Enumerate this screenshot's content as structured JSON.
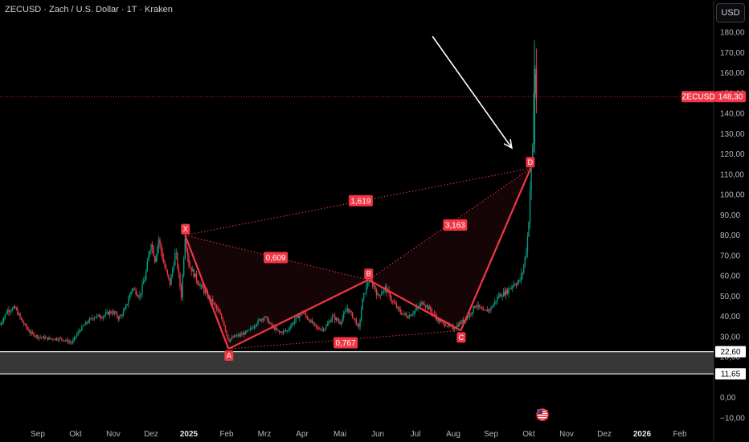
{
  "header": {
    "title": "ZECUSD · Zach / U.S. Dollar · 1T · Kraken",
    "currency_button": "USD"
  },
  "chart_data": {
    "type": "candlestick",
    "symbol": "ZECUSD",
    "last_price": "148,30",
    "y_ticks": [
      "180,00",
      "170,00",
      "160,00",
      "150,00",
      "140,00",
      "130,00",
      "120,00",
      "110,00",
      "100,00",
      "90,00",
      "80,00",
      "70,00",
      "60,00",
      "50,00",
      "40,00",
      "30,00",
      "20,00",
      "0,00",
      "−10,00"
    ],
    "y_tick_values": [
      180,
      170,
      160,
      150,
      140,
      130,
      120,
      110,
      100,
      90,
      80,
      70,
      60,
      50,
      40,
      30,
      20,
      0,
      -10
    ],
    "ylim": [
      -14,
      188
    ],
    "x_ticks": [
      {
        "label": "Sep",
        "x": 1,
        "bold": false
      },
      {
        "label": "Okt",
        "x": 2,
        "bold": false
      },
      {
        "label": "Nov",
        "x": 3,
        "bold": false
      },
      {
        "label": "Dez",
        "x": 4,
        "bold": false
      },
      {
        "label": "2025",
        "x": 5,
        "bold": true
      },
      {
        "label": "Feb",
        "x": 6,
        "bold": false
      },
      {
        "label": "Mrz",
        "x": 7,
        "bold": false
      },
      {
        "label": "Apr",
        "x": 8,
        "bold": false
      },
      {
        "label": "Mai",
        "x": 9,
        "bold": false
      },
      {
        "label": "Jun",
        "x": 10,
        "bold": false
      },
      {
        "label": "Jul",
        "x": 11,
        "bold": false
      },
      {
        "label": "Aug",
        "x": 12,
        "bold": false
      },
      {
        "label": "Sep",
        "x": 13,
        "bold": false
      },
      {
        "label": "Okt",
        "x": 14,
        "bold": false
      },
      {
        "label": "Nov",
        "x": 15,
        "bold": false
      },
      {
        "label": "Dez",
        "x": 16,
        "bold": false
      },
      {
        "label": "2026",
        "x": 17,
        "bold": true
      },
      {
        "label": "Feb",
        "x": 18,
        "bold": false
      }
    ],
    "price_path": [
      [
        0.0,
        36
      ],
      [
        0.2,
        43
      ],
      [
        0.4,
        44
      ],
      [
        0.6,
        37
      ],
      [
        0.8,
        32
      ],
      [
        1.0,
        30
      ],
      [
        1.3,
        29
      ],
      [
        1.6,
        29
      ],
      [
        1.9,
        27
      ],
      [
        2.1,
        33
      ],
      [
        2.3,
        37
      ],
      [
        2.5,
        40
      ],
      [
        2.7,
        40
      ],
      [
        2.9,
        42
      ],
      [
        3.0,
        42
      ],
      [
        3.15,
        39
      ],
      [
        3.3,
        43
      ],
      [
        3.5,
        54
      ],
      [
        3.7,
        50
      ],
      [
        3.85,
        60
      ],
      [
        4.0,
        77
      ],
      [
        4.1,
        68
      ],
      [
        4.2,
        78
      ],
      [
        4.35,
        65
      ],
      [
        4.5,
        56
      ],
      [
        4.65,
        72
      ],
      [
        4.8,
        50
      ],
      [
        4.9,
        80
      ],
      [
        5.0,
        66
      ],
      [
        5.1,
        62
      ],
      [
        5.3,
        55
      ],
      [
        5.5,
        50
      ],
      [
        5.7,
        45
      ],
      [
        5.9,
        38
      ],
      [
        6.05,
        28
      ],
      [
        6.2,
        30
      ],
      [
        6.4,
        31
      ],
      [
        6.6,
        33
      ],
      [
        6.8,
        37
      ],
      [
        7.0,
        40
      ],
      [
        7.2,
        35
      ],
      [
        7.4,
        32
      ],
      [
        7.6,
        33
      ],
      [
        7.8,
        38
      ],
      [
        8.0,
        42
      ],
      [
        8.2,
        38
      ],
      [
        8.4,
        34
      ],
      [
        8.6,
        34
      ],
      [
        8.8,
        40
      ],
      [
        9.0,
        37
      ],
      [
        9.2,
        44
      ],
      [
        9.4,
        38
      ],
      [
        9.5,
        34
      ],
      [
        9.6,
        48
      ],
      [
        9.75,
        58
      ],
      [
        9.9,
        55
      ],
      [
        10.0,
        50
      ],
      [
        10.2,
        54
      ],
      [
        10.4,
        47
      ],
      [
        10.6,
        42
      ],
      [
        10.8,
        40
      ],
      [
        11.0,
        43
      ],
      [
        11.2,
        47
      ],
      [
        11.4,
        43
      ],
      [
        11.6,
        38
      ],
      [
        11.8,
        36
      ],
      [
        12.0,
        34
      ],
      [
        12.2,
        37
      ],
      [
        12.4,
        40
      ],
      [
        12.6,
        46
      ],
      [
        12.8,
        42
      ],
      [
        13.0,
        44
      ],
      [
        13.2,
        50
      ],
      [
        13.4,
        52
      ],
      [
        13.6,
        56
      ],
      [
        13.75,
        57
      ],
      [
        13.85,
        63
      ],
      [
        13.95,
        75
      ],
      [
        14.0,
        88
      ],
      [
        14.05,
        110
      ],
      [
        14.1,
        122
      ],
      [
        14.15,
        165
      ],
      [
        14.2,
        148
      ]
    ],
    "levels": [
      {
        "value": 22.6,
        "label": "22,60"
      },
      {
        "value": 11.65,
        "label": "11,65"
      }
    ],
    "current_price_level": 148.3,
    "pattern": {
      "points": [
        {
          "name": "X",
          "x": 4.9,
          "y": 80
        },
        {
          "name": "A",
          "x": 6.05,
          "y": 24
        },
        {
          "name": "B",
          "x": 9.75,
          "y": 58
        },
        {
          "name": "C",
          "x": 12.2,
          "y": 33
        },
        {
          "name": "D",
          "x": 14.05,
          "y": 113
        }
      ],
      "ratios": [
        {
          "label": "1,619",
          "x": 9.55,
          "y": 97
        },
        {
          "label": "0,609",
          "x": 7.3,
          "y": 69
        },
        {
          "label": "0,767",
          "x": 9.15,
          "y": 27
        },
        {
          "label": "3,163",
          "x": 12.05,
          "y": 85
        }
      ]
    },
    "arrow": {
      "from": [
        11.45,
        178
      ],
      "to": [
        13.55,
        123
      ]
    }
  }
}
